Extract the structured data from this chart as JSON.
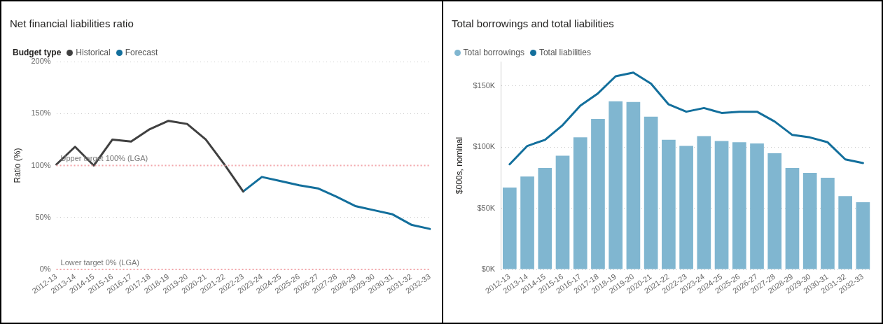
{
  "chart_data": [
    {
      "type": "line",
      "title": "Net financial liabilities ratio",
      "ylabel": "Ratio (%)",
      "legend_title": "Budget type",
      "legend": "top left",
      "grid": "y",
      "marker": "none",
      "line_style": "solid",
      "categories": [
        "2012-13",
        "2013-14",
        "2014-15",
        "2015-16",
        "2016-17",
        "2017-18",
        "2018-19",
        "2019-20",
        "2020-21",
        "2021-22",
        "2022-23",
        "2023-24",
        "2024-25",
        "2025-26",
        "2026-27",
        "2027-28",
        "2028-29",
        "2029-30",
        "2030-31",
        "2031-32",
        "2032-33"
      ],
      "series": [
        {
          "name": "Historical",
          "color": "#404040",
          "values": [
            101,
            118,
            100,
            125,
            123,
            135,
            143,
            140,
            125,
            101,
            75,
            null,
            null,
            null,
            null,
            null,
            null,
            null,
            null,
            null,
            null
          ]
        },
        {
          "name": "Forecast",
          "color": "#136f9c",
          "values": [
            null,
            null,
            null,
            null,
            null,
            null,
            null,
            null,
            null,
            null,
            75,
            89,
            85,
            81,
            78,
            70,
            61,
            57,
            53,
            43,
            39
          ]
        }
      ],
      "ylim": [
        0,
        200
      ],
      "yticks": [
        {
          "value": 0,
          "label": "0%"
        },
        {
          "value": 50,
          "label": "50%"
        },
        {
          "value": 100,
          "label": "100%"
        },
        {
          "value": 150,
          "label": "150%"
        },
        {
          "value": 200,
          "label": "200%"
        }
      ],
      "ref_lines": [
        {
          "axis": "y",
          "value": 100,
          "label": "Upper target 100% (LGA)",
          "color": "#f2a3a8",
          "line_style": "dotted"
        },
        {
          "axis": "y",
          "value": 0,
          "label": "Lower target 0% (LGA)",
          "color": "#f2a3a8",
          "line_style": "dotted"
        }
      ]
    },
    {
      "type": "bar",
      "title": "Total borrowings and total liabilities",
      "ylabel": "$000s, nominal",
      "legend": "top left",
      "grid": "y",
      "marker": "none",
      "line_style": "solid",
      "categories": [
        "2012-13",
        "2013-14",
        "2014-15",
        "2015-16",
        "2016-17",
        "2017-18",
        "2018-19",
        "2019-20",
        "2020-21",
        "2021-22",
        "2022-23",
        "2023-24",
        "2024-25",
        "2025-26",
        "2026-27",
        "2027-28",
        "2028-29",
        "2029-30",
        "2030-31",
        "2031-32",
        "2032-33"
      ],
      "series": [
        {
          "name": "Total borrowings",
          "type": "bar",
          "color": "#80b6d0",
          "values": [
            67,
            76,
            83,
            93,
            108,
            123,
            137.5,
            137,
            125,
            106,
            101,
            109,
            105,
            104,
            103,
            95,
            83,
            79,
            75,
            60,
            55
          ]
        },
        {
          "name": "Total liabilities",
          "type": "line",
          "color": "#136f9c",
          "values": [
            86,
            101,
            106,
            118,
            134,
            144,
            158,
            161,
            152,
            135,
            129,
            132,
            128,
            129,
            129,
            121,
            110,
            108,
            104,
            90,
            87
          ]
        }
      ],
      "ylim": [
        0,
        170
      ],
      "yticks": [
        {
          "value": 0,
          "label": "$0K"
        },
        {
          "value": 50,
          "label": "$50K"
        },
        {
          "value": 100,
          "label": "$100K"
        },
        {
          "value": 150,
          "label": "$150K"
        }
      ]
    }
  ]
}
